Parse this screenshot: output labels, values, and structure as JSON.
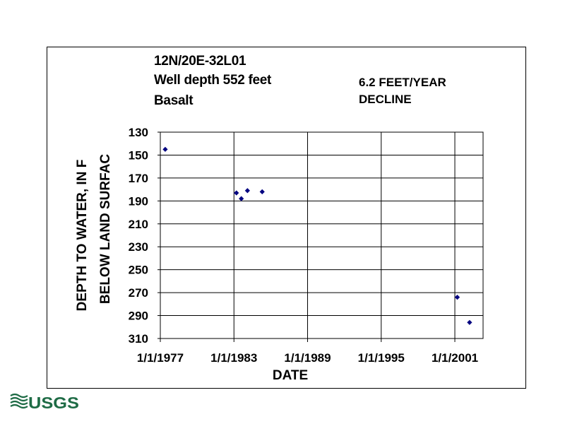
{
  "chart_data": {
    "type": "scatter",
    "title_lines": [
      "12N/20E-32L01",
      "Well depth 552 feet",
      "Basalt"
    ],
    "annotation_lines": [
      "6.2 FEET/YEAR",
      "DECLINE"
    ],
    "xlabel": "DATE",
    "ylabel_lines": [
      "DEPTH TO WATER, IN F",
      "BELOW LAND SURFAC"
    ],
    "x_ticks": [
      "1/1/1977",
      "1/1/1983",
      "1/1/1989",
      "1/1/1995",
      "1/1/2001"
    ],
    "x_tick_years": [
      1977,
      1983,
      1989,
      1995,
      2001
    ],
    "xlim": [
      1977,
      2003.3
    ],
    "ylim": [
      130,
      310
    ],
    "y_inverted": true,
    "y_ticks": [
      130,
      150,
      170,
      190,
      210,
      230,
      250,
      270,
      290,
      310
    ],
    "grid": true,
    "marker_color": "#000080",
    "points": [
      {
        "x": 1977.4,
        "y": 145
      },
      {
        "x": 1983.2,
        "y": 183
      },
      {
        "x": 1983.6,
        "y": 188
      },
      {
        "x": 1984.1,
        "y": 181
      },
      {
        "x": 1985.3,
        "y": 182
      },
      {
        "x": 2001.2,
        "y": 274
      },
      {
        "x": 2002.2,
        "y": 296
      }
    ]
  },
  "logo": {
    "text": "USGS",
    "color": "#1e6b45"
  }
}
